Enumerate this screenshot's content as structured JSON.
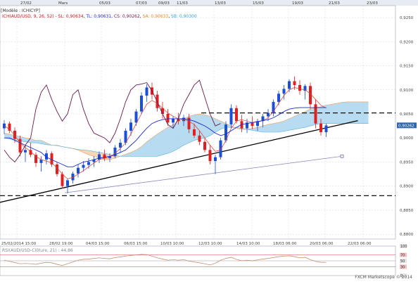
{
  "header": {
    "model_label": "[Modèle : ICHICYP]",
    "indicator_legend": {
      "name": "ICH(AUD/USD, 9, 26, 52) -",
      "sl": "SL: 0,90634",
      "tl": "TL: 0,90631",
      "cs": "CS: 0,90262",
      "sa": "SA: 0,90633",
      "sb": "SB: 0,90300"
    },
    "top_dates": [
      "27/02",
      "Mars",
      "05/03",
      "07/03",
      "09/03",
      "11/03",
      "13/03",
      "15/03",
      "19/03",
      "21/03",
      "23/03"
    ]
  },
  "colors": {
    "bull_candle": "#1a4fd6",
    "bear_candle": "#e02020",
    "tenkan": "#e03a2a",
    "kijun": "#1a2ad0",
    "chikou": "#6a1a4a",
    "cloud_bull": "#9fd0ec",
    "cloud_bear": "#f6c9a0",
    "grid": "#cfd6df",
    "last_price_bg": "#2f66ad",
    "rsi_line": "#c08060"
  },
  "price_scale": {
    "labels": [
      "0,9250",
      "0,9200",
      "0,9150",
      "0,9100",
      "0,9050",
      "0,9000",
      "0,8950",
      "0,8900",
      "0,8850",
      "0,8800"
    ],
    "last_price": "0,90262"
  },
  "x_axis_labels": [
    "25/02/2014 15:00",
    "28/02 19:00",
    "04/03 15:00",
    "06/03 15:00",
    "10/03 10:00",
    "12/03 10:00",
    "14/03 10:00",
    "18/03 06:00",
    "20/03 06:00",
    "22/03 06:00"
  ],
  "rsi": {
    "label": "RSI(AUD/USD-Clôture, 21) : 44,86",
    "scale": [
      "100",
      "70",
      "50",
      "30",
      "0"
    ]
  },
  "footer": "FXCM Marketscope © 2014",
  "chart_data": {
    "type": "candlestick",
    "instrument": "AUD/USD",
    "ylim": [
      0.879,
      0.9275
    ],
    "x_labels": [
      "25/02/2014 15:00",
      "28/02 19:00",
      "04/03 15:00",
      "06/03 15:00",
      "10/03 10:00",
      "12/03 10:00",
      "14/03 10:00",
      "18/03 06:00",
      "20/03 06:00",
      "22/03 06:00"
    ],
    "candles": [
      [
        0.902,
        0.9037,
        0.9008,
        0.903
      ],
      [
        0.903,
        0.9034,
        0.901,
        0.9015
      ],
      [
        0.9015,
        0.9022,
        0.899,
        0.8998
      ],
      [
        0.8998,
        0.9005,
        0.8962,
        0.897
      ],
      [
        0.897,
        0.8985,
        0.895,
        0.8975
      ],
      [
        0.8975,
        0.899,
        0.896,
        0.8965
      ],
      [
        0.8965,
        0.897,
        0.894,
        0.8948
      ],
      [
        0.8948,
        0.8962,
        0.893,
        0.8955
      ],
      [
        0.8955,
        0.8975,
        0.8945,
        0.8968
      ],
      [
        0.8968,
        0.8972,
        0.894,
        0.8945
      ],
      [
        0.8945,
        0.895,
        0.892,
        0.8925
      ],
      [
        0.8925,
        0.893,
        0.8895,
        0.89
      ],
      [
        0.89,
        0.8915,
        0.8885,
        0.8912
      ],
      [
        0.8912,
        0.893,
        0.8905,
        0.8926
      ],
      [
        0.8926,
        0.8945,
        0.8918,
        0.8938
      ],
      [
        0.8938,
        0.8952,
        0.893,
        0.8944
      ],
      [
        0.8944,
        0.8958,
        0.8936,
        0.895
      ],
      [
        0.895,
        0.8962,
        0.894,
        0.8955
      ],
      [
        0.8955,
        0.8972,
        0.8948,
        0.8966
      ],
      [
        0.8966,
        0.8976,
        0.8952,
        0.8958
      ],
      [
        0.8958,
        0.8968,
        0.895,
        0.8962
      ],
      [
        0.8962,
        0.8985,
        0.8958,
        0.898
      ],
      [
        0.898,
        0.8998,
        0.897,
        0.899
      ],
      [
        0.899,
        0.902,
        0.8985,
        0.9015
      ],
      [
        0.9015,
        0.904,
        0.9005,
        0.9032
      ],
      [
        0.9032,
        0.906,
        0.9025,
        0.9055
      ],
      [
        0.9055,
        0.9095,
        0.905,
        0.9088
      ],
      [
        0.9088,
        0.9112,
        0.9075,
        0.9105
      ],
      [
        0.9105,
        0.9115,
        0.908,
        0.909
      ],
      [
        0.909,
        0.9098,
        0.9055,
        0.9062
      ],
      [
        0.9062,
        0.9075,
        0.904,
        0.905
      ],
      [
        0.905,
        0.906,
        0.9025,
        0.9032
      ],
      [
        0.9032,
        0.9045,
        0.902,
        0.904
      ],
      [
        0.904,
        0.9052,
        0.9028,
        0.9035
      ],
      [
        0.9035,
        0.9048,
        0.9025,
        0.9042
      ],
      [
        0.9042,
        0.905,
        0.901,
        0.9018
      ],
      [
        0.9018,
        0.903,
        0.9,
        0.9005
      ],
      [
        0.9005,
        0.9015,
        0.8985,
        0.8992
      ],
      [
        0.8992,
        0.9,
        0.897,
        0.8975
      ],
      [
        0.8975,
        0.8985,
        0.8945,
        0.8952
      ],
      [
        0.8952,
        0.8965,
        0.8925,
        0.896
      ],
      [
        0.896,
        0.9,
        0.8955,
        0.8995
      ],
      [
        0.8995,
        0.9035,
        0.899,
        0.9028
      ],
      [
        0.9028,
        0.907,
        0.902,
        0.9062
      ],
      [
        0.9062,
        0.9068,
        0.903,
        0.9035
      ],
      [
        0.9035,
        0.9048,
        0.9012,
        0.902
      ],
      [
        0.902,
        0.904,
        0.901,
        0.9032
      ],
      [
        0.9032,
        0.9045,
        0.9018,
        0.9025
      ],
      [
        0.9025,
        0.904,
        0.9015,
        0.9035
      ],
      [
        0.9035,
        0.905,
        0.9022,
        0.9045
      ],
      [
        0.9045,
        0.906,
        0.9035,
        0.9052
      ],
      [
        0.9052,
        0.908,
        0.9045,
        0.9075
      ],
      [
        0.9075,
        0.9098,
        0.9068,
        0.9092
      ],
      [
        0.9092,
        0.911,
        0.908,
        0.9102
      ],
      [
        0.9102,
        0.9122,
        0.9095,
        0.9118
      ],
      [
        0.9118,
        0.9128,
        0.91,
        0.911
      ],
      [
        0.911,
        0.912,
        0.909,
        0.9098
      ],
      [
        0.9098,
        0.9112,
        0.908,
        0.9108
      ],
      [
        0.9108,
        0.9115,
        0.906,
        0.907
      ],
      [
        0.907,
        0.908,
        0.902,
        0.903
      ],
      [
        0.903,
        0.904,
        0.9005,
        0.9012
      ],
      [
        0.9012,
        0.903,
        0.9002,
        0.9026
      ]
    ],
    "tenkan_sen": [
      0.9025,
      0.9018,
      0.9005,
      0.899,
      0.898,
      0.8972,
      0.8962,
      0.8955,
      0.8952,
      0.8948,
      0.8938,
      0.8925,
      0.8915,
      0.8918,
      0.8925,
      0.8932,
      0.894,
      0.8948,
      0.8955,
      0.8958,
      0.896,
      0.8968,
      0.8978,
      0.899,
      0.9008,
      0.903,
      0.905,
      0.907,
      0.9078,
      0.9072,
      0.9062,
      0.9052,
      0.9045,
      0.904,
      0.9038,
      0.9035,
      0.9028,
      0.9015,
      0.9,
      0.8985,
      0.8972,
      0.8975,
      0.8995,
      0.902,
      0.9035,
      0.9038,
      0.9035,
      0.9032,
      0.9033,
      0.9036,
      0.9042,
      0.9055,
      0.9072,
      0.9088,
      0.91,
      0.9105,
      0.9102,
      0.91,
      0.9092,
      0.908,
      0.9068,
      0.9062
    ],
    "kijun_sen": [
      0.9,
      0.9,
      0.8995,
      0.899,
      0.8985,
      0.898,
      0.8975,
      0.897,
      0.896,
      0.8955,
      0.895,
      0.8945,
      0.894,
      0.894,
      0.8945,
      0.895,
      0.8952,
      0.8955,
      0.8958,
      0.896,
      0.8962,
      0.8965,
      0.897,
      0.8975,
      0.8985,
      0.8995,
      0.9008,
      0.902,
      0.903,
      0.9035,
      0.9038,
      0.904,
      0.904,
      0.904,
      0.904,
      0.9038,
      0.9035,
      0.903,
      0.9025,
      0.9018,
      0.901,
      0.9005,
      0.9008,
      0.9015,
      0.9022,
      0.9028,
      0.903,
      0.9032,
      0.9034,
      0.9036,
      0.9038,
      0.9042,
      0.9048,
      0.9055,
      0.906,
      0.9062,
      0.9063,
      0.9063,
      0.9063,
      0.9063,
      0.9063,
      0.9063
    ],
    "chikou_span": [
      0.8975,
      0.896,
      0.895,
      0.8965,
      0.8985,
      0.9,
      0.906,
      0.9095,
      0.911,
      0.908,
      0.9055,
      0.9035,
      0.905,
      0.909,
      0.91,
      0.906,
      0.903,
      0.901,
      0.9005,
      0.9,
      0.899,
      0.901,
      0.904,
      0.9075,
      0.91,
      0.911,
      0.9112,
      0.9115,
      0.9098,
      0.9075,
      0.905,
      0.9028,
      0.902,
      0.904,
      0.907,
      0.909,
      0.911,
      0.912,
      0.9085,
      0.905,
      0.9025,
      0.903
    ],
    "senkou_span_a": [
      0.901,
      0.9008,
      0.9005,
      0.9003,
      0.9,
      0.8998,
      0.8995,
      0.8995,
      0.899,
      0.8985,
      0.8985,
      0.8982,
      0.898,
      0.8978,
      0.8975,
      0.897,
      0.8965,
      0.8962,
      0.8958,
      0.8955,
      0.8955,
      0.8958,
      0.8962,
      0.8966,
      0.897,
      0.8975,
      0.8982,
      0.8992,
      0.9,
      0.9008,
      0.9015,
      0.9022,
      0.9028,
      0.9035,
      0.904,
      0.9045,
      0.9048,
      0.905,
      0.9048,
      0.9045,
      0.904,
      0.9035,
      0.903,
      0.9025,
      0.902,
      0.9018,
      0.9018,
      0.902,
      0.9022,
      0.9025,
      0.9028,
      0.903,
      0.9032,
      0.9035,
      0.904,
      0.9045,
      0.905,
      0.9055,
      0.906,
      0.9063,
      0.9065,
      0.9068,
      0.907,
      0.9072,
      0.9074,
      0.9075,
      0.9075,
      0.9075,
      0.9075,
      0.9075
    ],
    "senkou_span_b": [
      0.9,
      0.8998,
      0.8996,
      0.8994,
      0.8992,
      0.899,
      0.899,
      0.8988,
      0.8986,
      0.8985,
      0.8984,
      0.8982,
      0.898,
      0.8978,
      0.8976,
      0.8975,
      0.8974,
      0.8972,
      0.897,
      0.8968,
      0.8966,
      0.8964,
      0.8962,
      0.8962,
      0.8962,
      0.8962,
      0.8962,
      0.8962,
      0.8962,
      0.8962,
      0.8965,
      0.8968,
      0.8972,
      0.8978,
      0.8985,
      0.899,
      0.8995,
      0.8998,
      0.9,
      0.9005,
      0.9012,
      0.9018,
      0.9022,
      0.9022,
      0.9022,
      0.902,
      0.9018,
      0.9016,
      0.9014,
      0.9012,
      0.9012,
      0.9012,
      0.9012,
      0.9014,
      0.9016,
      0.9018,
      0.902,
      0.9022,
      0.9025,
      0.9028,
      0.903,
      0.903,
      0.903,
      0.903,
      0.903,
      0.903,
      0.903,
      0.903,
      0.903,
      0.903
    ],
    "horizontal_lines": [
      0.9052,
      0.888
    ],
    "trendlines": [
      {
        "x0": -2.5,
        "y0": 0.8862,
        "x1": 67,
        "y1": 0.9036,
        "style": "solid",
        "color": "#000000"
      },
      {
        "x0": 11.5,
        "y0": 0.8886,
        "x1": 64,
        "y1": 0.8962,
        "style": "solid",
        "color": "#8888c0"
      }
    ],
    "rsi_values": [
      52,
      48,
      44,
      40,
      41,
      40,
      38,
      42,
      45,
      43,
      38,
      34,
      40,
      46,
      52,
      55,
      56,
      58,
      60,
      58,
      57,
      61,
      63,
      66,
      68,
      70,
      72,
      71,
      66,
      60,
      56,
      52,
      54,
      52,
      54,
      49,
      46,
      43,
      40,
      36,
      42,
      52,
      58,
      62,
      55,
      50,
      52,
      50,
      53,
      56,
      58,
      61,
      64,
      66,
      67,
      64,
      60,
      62,
      54,
      48,
      45,
      45
    ],
    "rsi_levels": [
      100,
      70,
      50,
      30,
      0
    ]
  }
}
